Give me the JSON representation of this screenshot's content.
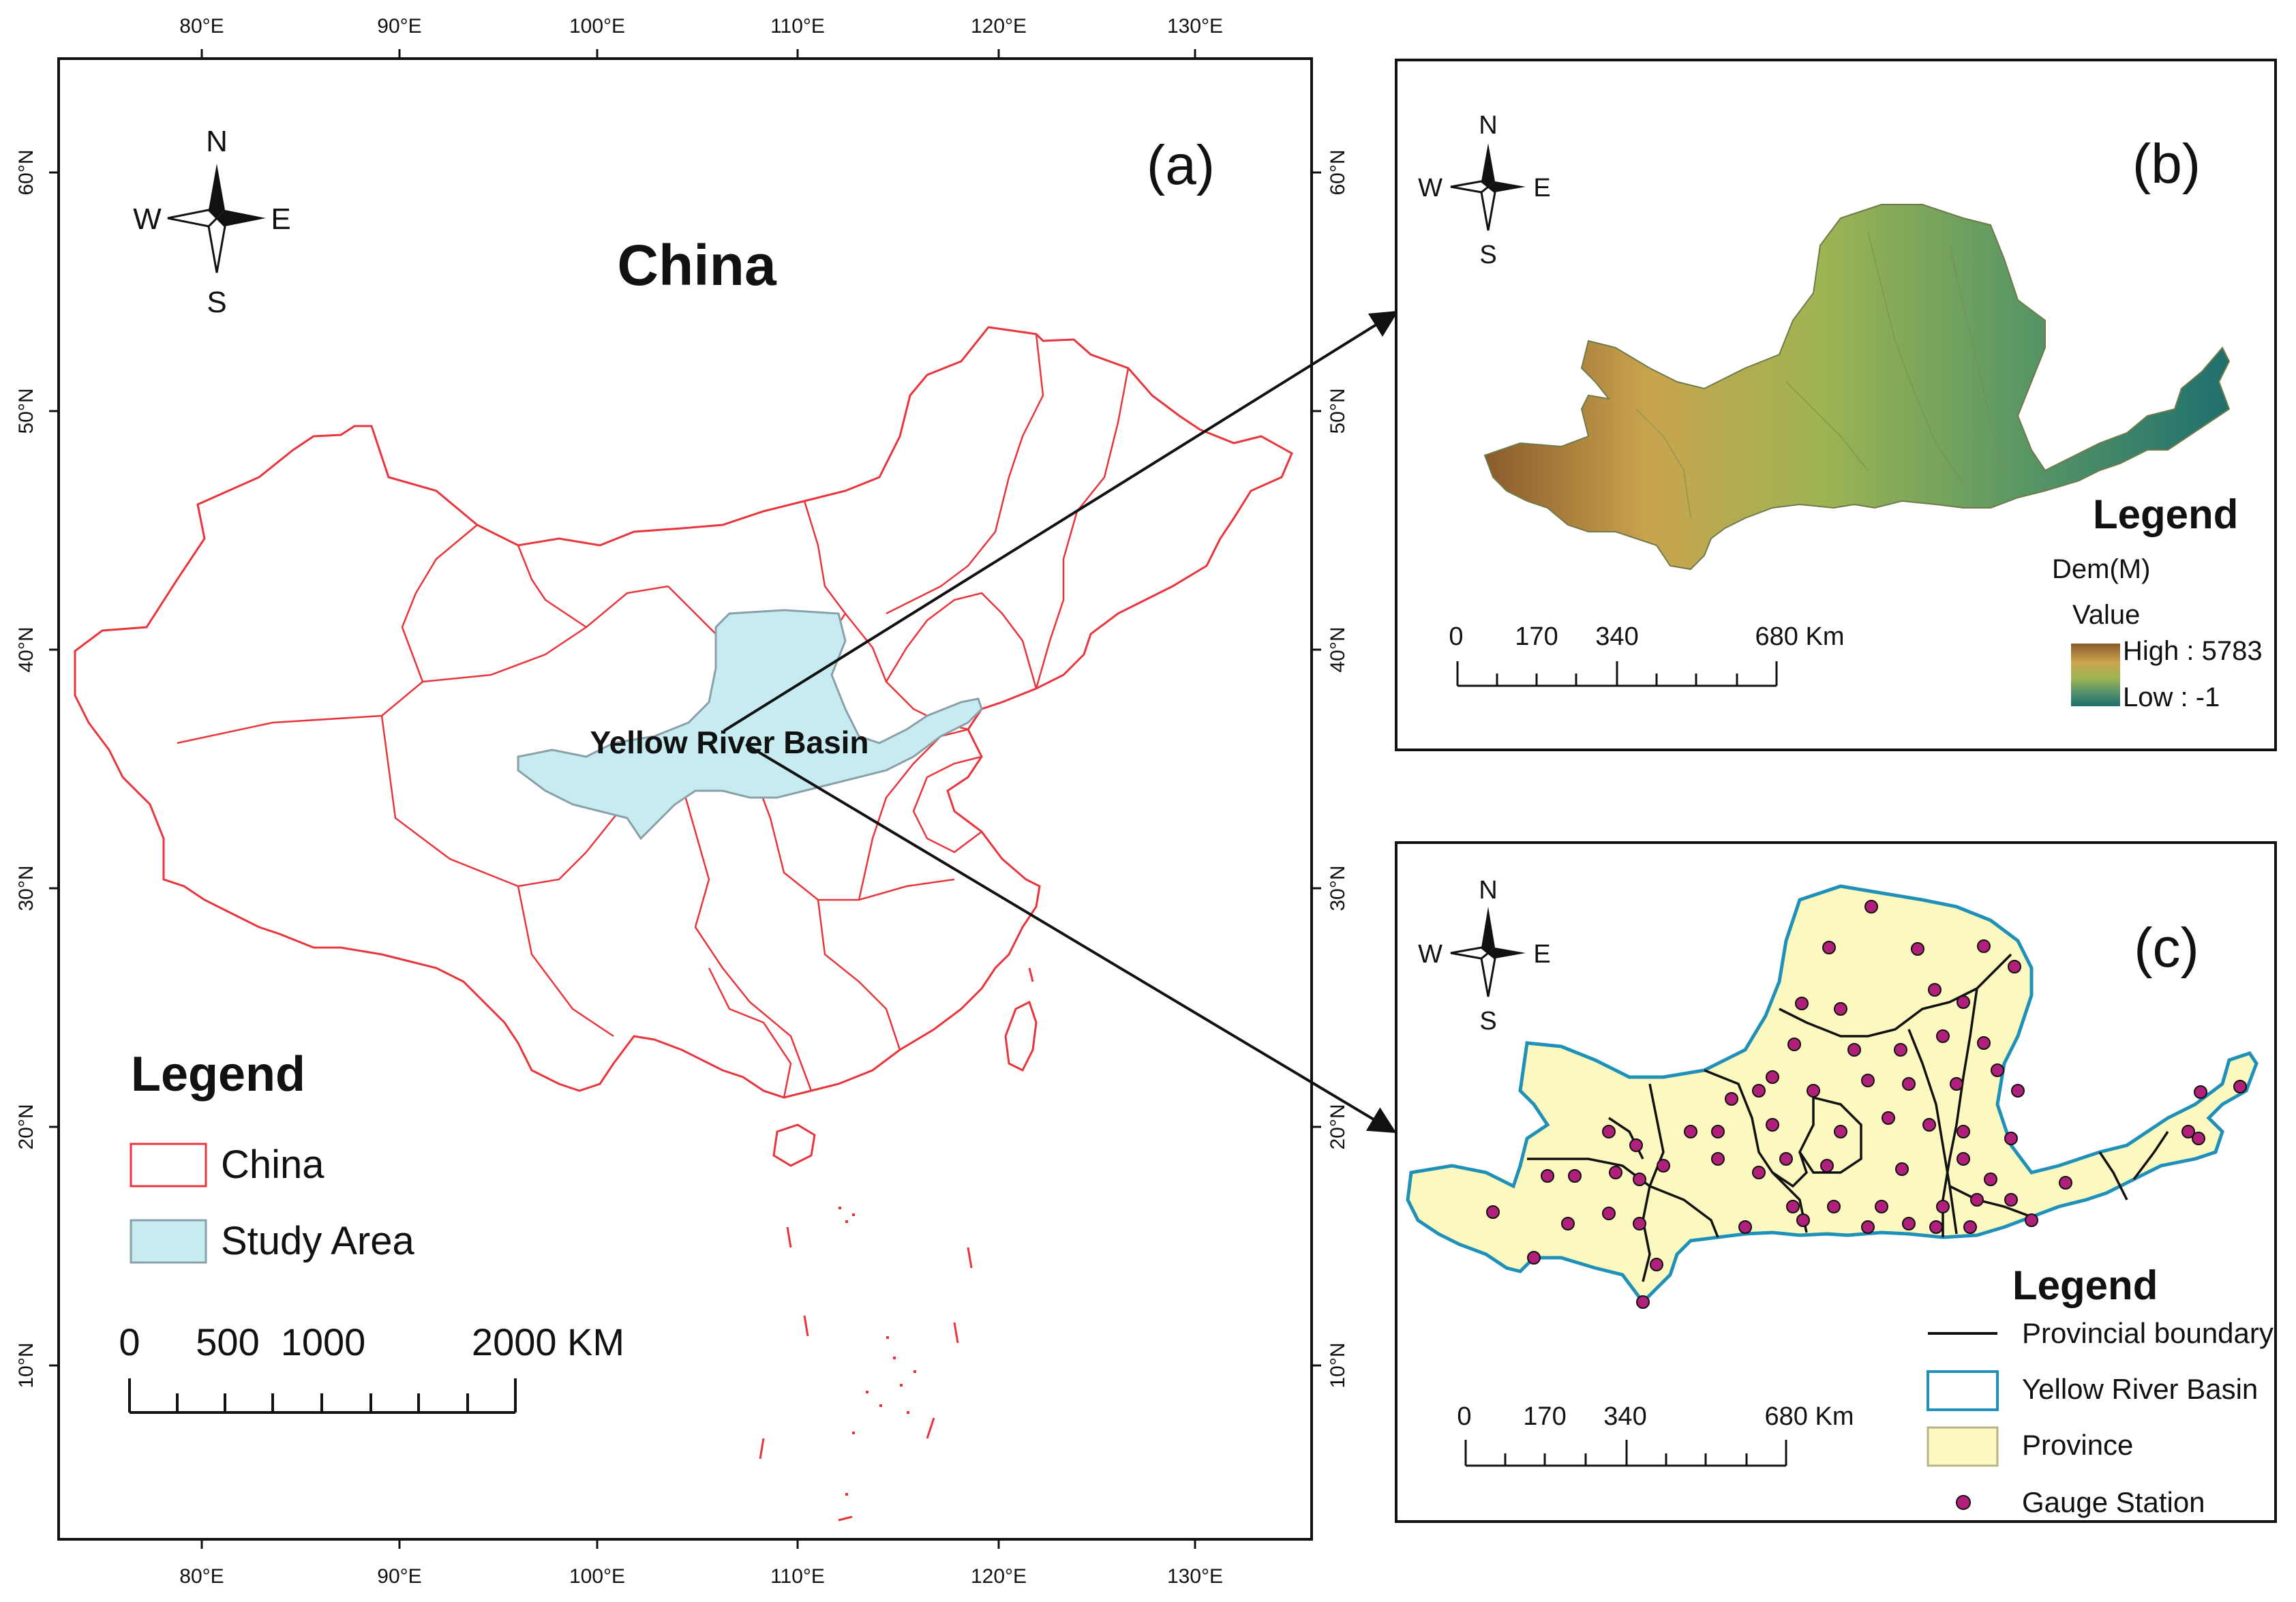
{
  "panel_a": {
    "label": "(a)",
    "title": "China",
    "basin_label": "Yellow River Basin",
    "top_ticks": [
      "80°E",
      "90°E",
      "100°E",
      "110°E",
      "120°E",
      "130°E"
    ],
    "bottom_ticks": [
      "80°E",
      "90°E",
      "100°E",
      "110°E",
      "120°E",
      "130°E"
    ],
    "left_ticks": [
      "60°N",
      "50°N",
      "40°N",
      "30°N",
      "20°N",
      "10°N"
    ],
    "right_ticks": [
      "60°N",
      "50°N",
      "40°N",
      "30°N",
      "20°N",
      "10°N"
    ],
    "compass": {
      "n": "N",
      "s": "S",
      "e": "E",
      "w": "W"
    },
    "legend": {
      "title": "Legend",
      "items": [
        {
          "label": "China",
          "color": "#e8353c"
        },
        {
          "label": "Study Area",
          "color": "#c6ecf2"
        }
      ]
    },
    "scale": {
      "labels": [
        "0",
        "500",
        "1000",
        "2000 KM"
      ]
    }
  },
  "panel_b": {
    "label": "(b)",
    "compass": {
      "n": "N",
      "s": "S",
      "e": "E",
      "w": "W"
    },
    "legend": {
      "title": "Legend",
      "field": "Dem(M)",
      "value_label": "Value",
      "high": "High : 5783",
      "low": "Low : -1",
      "ramp": [
        "#8a5a2b",
        "#c9a44e",
        "#9fb452",
        "#4f8f6b",
        "#1f6f6e"
      ]
    },
    "scale": {
      "labels": [
        "0",
        "170",
        "340",
        "680 Km"
      ]
    }
  },
  "panel_c": {
    "label": "(c)",
    "compass": {
      "n": "N",
      "s": "S",
      "e": "E",
      "w": "W"
    },
    "legend": {
      "title": "Legend",
      "items": [
        {
          "label": "Provincial boundary",
          "color": "#111111"
        },
        {
          "label": "Yellow River Basin",
          "color": "#1f90b8"
        },
        {
          "label": "Province",
          "color": "#fbf8c0"
        },
        {
          "label": "Gauge Station",
          "color": "#b0207a"
        }
      ]
    },
    "scale": {
      "labels": [
        "0",
        "170",
        "340",
        "680 Km"
      ]
    }
  }
}
